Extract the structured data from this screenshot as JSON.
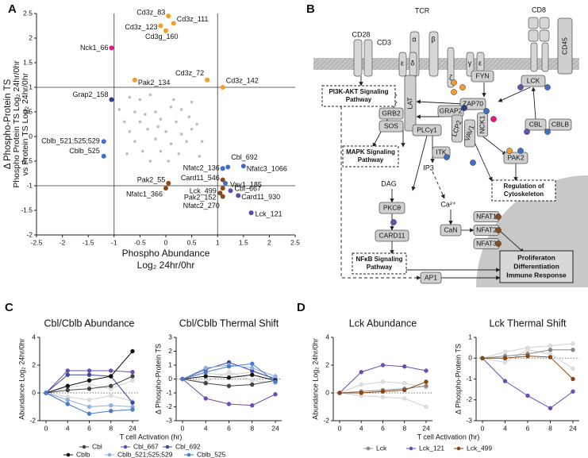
{
  "panel_labels": [
    "A",
    "B",
    "C",
    "D"
  ],
  "chart_data": [
    {
      "type": "scatter",
      "x_label": [
        "Phospho Abundance",
        "Log₂ 24hr/0hr"
      ],
      "y_label": [
        "Δ Phospho-Protein TS",
        "Phospho Protein TS Log₂ 24hr/0hr",
        "vs Protein TS Log₂ 24hr/0hr"
      ],
      "xlim": [
        -2.5,
        2.5
      ],
      "xticks": [
        -2.5,
        -2,
        -1.5,
        -1,
        -0.5,
        0,
        0.5,
        1,
        1.5,
        2,
        2.5
      ],
      "ylim": [
        -2,
        2.5
      ],
      "yticks": [
        -2,
        -1.5,
        -1,
        -0.5,
        0,
        0.5,
        1,
        1.5,
        2,
        2.5
      ],
      "reference_x": [
        -1,
        1
      ],
      "reference_y": [
        -1,
        1
      ],
      "series": [
        {
          "color": "#bdbdbd",
          "x": [
            -0.7,
            -0.5,
            -0.3,
            0.1,
            -0.6,
            -0.4,
            -0.2,
            0.3,
            0.5,
            -0.8,
            -0.5,
            -0.1,
            0.2,
            0.6,
            -0.7,
            -0.35,
            0,
            0.3,
            0.5,
            -0.6,
            -0.2,
            0.1,
            0.4,
            -0.45,
            -0.1,
            0.25,
            0.65,
            -0.3,
            0.05,
            -0.75,
            0.45,
            -0.9,
            0.7,
            -0.15,
            0.15
          ],
          "values": [
            0.8,
            0.75,
            0.85,
            0.6,
            0.5,
            0.45,
            0.5,
            0.55,
            0.7,
            0.3,
            0.3,
            0.35,
            0.3,
            0.25,
            0.1,
            0.15,
            0.1,
            0.05,
            0.15,
            -0.1,
            -0.05,
            -0.15,
            -0.1,
            -0.3,
            -0.3,
            -0.35,
            -0.4,
            -0.5,
            -0.5,
            -0.35,
            0.4,
            0.55,
            -0.1,
            0.2,
            0.75
          ]
        },
        {
          "labels": [
            "Cd3z_83",
            "Cd3z_111",
            "Cd3z_123",
            "Cd3g_160",
            "Nck1_66",
            "Pak2_134",
            "Cd3z_72",
            "Cd3z_142",
            "Grap2_158",
            "Cblb_521;525;529",
            "Cblb_525",
            "Cbl_692",
            "Nfatc3_1066",
            "Nfatc2_136",
            "Card11_546",
            "Vav1_185",
            "Pak2_55",
            "Nfatc1_366",
            "Lck_499",
            "Cbl_667",
            "Pak2_152",
            "Card11_930",
            "Nfatc2_270",
            "Lck_121"
          ],
          "x": [
            0.05,
            0.15,
            -0.1,
            0,
            -1.05,
            -0.6,
            0.8,
            1.1,
            -1.05,
            -1.2,
            -1.2,
            1.2,
            1.5,
            1.1,
            1.1,
            1.15,
            0.05,
            0,
            1.1,
            1.25,
            1.05,
            1.4,
            1.1,
            1.65
          ],
          "values": [
            2.45,
            2.3,
            2.25,
            2.15,
            1.8,
            1.15,
            1.15,
            1,
            0.75,
            -0.1,
            -0.4,
            -0.62,
            -0.6,
            -0.65,
            -0.88,
            -0.95,
            -0.95,
            -1.05,
            -1.05,
            -1.1,
            -1.15,
            -1.2,
            -1.22,
            -1.55
          ],
          "colors": [
            "#f39c2b",
            "#f39c2b",
            "#f39c2b",
            "#f39c2b",
            "#e6197a",
            "#f39c2b",
            "#f39c2b",
            "#f39c2b",
            "#2c3e8c",
            "#3f6fc4",
            "#3f6fc4",
            "#3f6fc4",
            "#3f6fc4",
            "#3f6fc4",
            "#8b4a1c",
            "#3f6fc4",
            "#8b4a1c",
            "#8b4a1c",
            "#8b4a1c",
            "#5b4aa8",
            "#8b4a1c",
            "#5b4aa8",
            "#8b4a1c",
            "#5b4aa8"
          ]
        }
      ]
    },
    {
      "type": "line",
      "title": "Cbl/Cblb Abundance",
      "y_label": "Abundance Log₂ 24hr/0hr",
      "x_label": "T cell Activation (hr)",
      "categories": [
        "0",
        "4",
        "6",
        "8",
        "24"
      ],
      "ylim": [
        -2,
        4
      ],
      "yticks": [
        -2,
        0,
        2,
        4
      ],
      "reference_y": [
        0
      ],
      "legend": true,
      "series": [
        {
          "color": "#d0d0d0",
          "values": [
            0,
            0.4,
            0.6,
            0.3,
            0.9
          ]
        },
        {
          "color": "#d0d0d0",
          "values": [
            0,
            -0.3,
            -0.5,
            -0.2,
            -0.6
          ]
        },
        {
          "name": "Cbl",
          "color": "#444444",
          "values": [
            0,
            0.2,
            0.3,
            0.5,
            1.2
          ]
        },
        {
          "name": "Cbl_667",
          "color": "#6a4fb0",
          "values": [
            0,
            1.6,
            1.6,
            1.6,
            1.5
          ]
        },
        {
          "name": "Cbl_692",
          "color": "#3a4aa0",
          "values": [
            0,
            1.3,
            1.3,
            1.2,
            -0.7
          ]
        },
        {
          "name": "Cblb",
          "color": "#111111",
          "values": [
            0,
            0.5,
            0.9,
            1.2,
            3
          ]
        },
        {
          "name": "Cblb_521;525;529",
          "color": "#8fb0e0",
          "values": [
            0,
            -0.5,
            -1,
            -0.9,
            -1
          ]
        },
        {
          "name": "Cblb_525",
          "color": "#4a7ac8",
          "values": [
            0,
            -0.8,
            -1.5,
            -1.3,
            -1.2
          ]
        }
      ]
    },
    {
      "type": "line",
      "title": "Cbl/Cblb Thermal Shift",
      "y_label": "Δ Phospho-Protein TS",
      "categories": [
        "0",
        "4",
        "6",
        "8",
        "24"
      ],
      "ylim": [
        -3,
        3
      ],
      "yticks": [
        -3,
        -2,
        -1,
        0,
        1,
        2,
        3
      ],
      "reference_y": [
        0
      ],
      "series": [
        {
          "color": "#d0d0d0",
          "values": [
            0,
            0.4,
            0.3,
            0.5,
            0.1
          ]
        },
        {
          "color": "#d0d0d0",
          "values": [
            0,
            -0.2,
            0.5,
            -0.1,
            -0.3
          ]
        },
        {
          "name": "Cbl",
          "color": "#444444",
          "values": [
            0,
            -0.3,
            -0.5,
            -0.4,
            -0.1
          ]
        },
        {
          "name": "Cbl_667",
          "color": "#6a4fb0",
          "values": [
            0,
            -1.4,
            -1.8,
            -1.9,
            -1.1
          ]
        },
        {
          "name": "Cbl_692",
          "color": "#3a4aa0",
          "values": [
            0,
            0.7,
            1.2,
            0.6,
            0
          ]
        },
        {
          "name": "Cblb",
          "color": "#111111",
          "values": [
            0,
            0.2,
            0.1,
            0.3,
            -0.1
          ]
        },
        {
          "name": "Cblb_521;525;529",
          "color": "#8fb0e0",
          "values": [
            0,
            0.8,
            1,
            0.8,
            0.2
          ]
        },
        {
          "name": "Cblb_525",
          "color": "#4a7ac8",
          "values": [
            0,
            0.5,
            0.9,
            1.1,
            -0.2
          ]
        }
      ]
    },
    {
      "type": "line",
      "title": "Lck Abundance",
      "y_label": "Abundance Log₂ 24hr/0hr",
      "x_label": "T cell Activation (hr)",
      "categories": [
        "0",
        "4",
        "6",
        "8",
        "24"
      ],
      "ylim": [
        -2,
        4
      ],
      "yticks": [
        -2,
        0,
        2,
        4
      ],
      "reference_y": [
        0
      ],
      "legend": true,
      "series": [
        {
          "color": "#d0d0d0",
          "values": [
            0,
            0.6,
            0.8,
            0.7,
            0.4
          ]
        },
        {
          "color": "#d0d0d0",
          "values": [
            0,
            -0.2,
            -0.3,
            -0.4,
            -1
          ]
        },
        {
          "name": "Lck",
          "color": "#888888",
          "values": [
            0,
            0.1,
            0.2,
            0.3,
            0.5
          ]
        },
        {
          "name": "Lck_121",
          "color": "#6a4fb0",
          "values": [
            0,
            1.5,
            2,
            1.9,
            1.6
          ]
        },
        {
          "name": "Lck_499",
          "color": "#8b4513",
          "values": [
            0,
            0,
            0.1,
            0.2,
            0.8
          ]
        }
      ]
    },
    {
      "type": "line",
      "title": "Lck Thermal Shift",
      "y_label": "Δ Phospho-Protein TS",
      "categories": [
        "0",
        "4",
        "6",
        "8",
        "24"
      ],
      "ylim": [
        -3,
        1
      ],
      "yticks": [
        -3,
        -2,
        -1,
        0,
        1
      ],
      "reference_y": [
        0
      ],
      "series": [
        {
          "color": "#d0d0d0",
          "values": [
            0,
            0.3,
            0.5,
            0.6,
            0.7
          ]
        },
        {
          "color": "#d0d0d0",
          "values": [
            0,
            -0.2,
            0.4,
            0.2,
            -0.5
          ]
        },
        {
          "name": "Lck",
          "color": "#888888",
          "values": [
            0,
            0.1,
            0.2,
            0.4,
            0.4
          ]
        },
        {
          "name": "Lck_121",
          "color": "#6a4fb0",
          "values": [
            0,
            -1.1,
            -1.8,
            -2.4,
            -1.6
          ]
        },
        {
          "name": "Lck_499",
          "color": "#8b4513",
          "values": [
            0,
            0,
            0.1,
            0.05,
            -1
          ]
        }
      ]
    }
  ],
  "diagram": {
    "nodes": [
      "CD28",
      "TCR",
      "α",
      "β",
      "CD3",
      "ε",
      "δ",
      "γ",
      "ε",
      "ζ",
      "CD8",
      "CD45",
      "FYN",
      "LCK",
      "ZAP70",
      "LAT",
      "GRAP2",
      "GRB2",
      "SOS",
      "LCP2",
      "VAV1",
      "NCK1",
      "PLCγ1",
      "ITK",
      "CBL",
      "CBLB",
      "PAK2",
      "IP3",
      "DAG",
      "PKCθ",
      "Ca²⁺",
      "CaN",
      "NFAT1",
      "NFAT2",
      "NFAT3",
      "CARD11",
      "AP1"
    ],
    "pathways": [
      [
        "PI3K-AKT Signaling",
        "Pathway"
      ],
      [
        "MAPK Signaling",
        "Pathway"
      ],
      [
        "NFκB Signaling",
        "Pathway"
      ],
      [
        "Regulation of",
        "Cytoskeleton"
      ]
    ],
    "outcome": [
      "Proliferaton",
      "Differentiation",
      "Immune Response"
    ]
  }
}
